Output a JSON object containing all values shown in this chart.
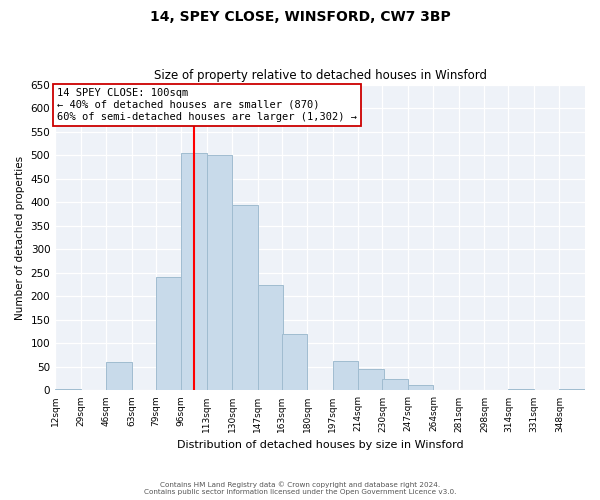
{
  "title": "14, SPEY CLOSE, WINSFORD, CW7 3BP",
  "subtitle": "Size of property relative to detached houses in Winsford",
  "xlabel": "Distribution of detached houses by size in Winsford",
  "ylabel": "Number of detached properties",
  "bar_color": "#c8daea",
  "bar_edge_color": "#a0bcd0",
  "vline_x": 104.5,
  "vline_color": "red",
  "annotation_title": "14 SPEY CLOSE: 100sqm",
  "annotation_line1": "← 40% of detached houses are smaller (870)",
  "annotation_line2": "60% of semi-detached houses are larger (1,302) →",
  "annotation_box_color": "white",
  "annotation_box_edge": "#cc0000",
  "bin_starts": [
    12,
    29,
    46,
    63,
    79,
    96,
    113,
    130,
    147,
    163,
    180,
    197,
    214,
    230,
    247,
    264,
    281,
    298,
    314,
    331,
    348
  ],
  "bin_labels": [
    "12sqm",
    "29sqm",
    "46sqm",
    "63sqm",
    "79sqm",
    "96sqm",
    "113sqm",
    "130sqm",
    "147sqm",
    "163sqm",
    "180sqm",
    "197sqm",
    "214sqm",
    "230sqm",
    "247sqm",
    "264sqm",
    "281sqm",
    "298sqm",
    "314sqm",
    "331sqm",
    "348sqm"
  ],
  "bar_heights": [
    3,
    0,
    60,
    0,
    240,
    505,
    500,
    395,
    225,
    120,
    0,
    63,
    45,
    25,
    12,
    0,
    0,
    0,
    2,
    0,
    2
  ],
  "ylim": [
    0,
    650
  ],
  "yticks": [
    0,
    50,
    100,
    150,
    200,
    250,
    300,
    350,
    400,
    450,
    500,
    550,
    600,
    650
  ],
  "footer1": "Contains HM Land Registry data © Crown copyright and database right 2024.",
  "footer2": "Contains public sector information licensed under the Open Government Licence v3.0.",
  "background_color": "#eef2f8",
  "grid_color": "#ffffff"
}
